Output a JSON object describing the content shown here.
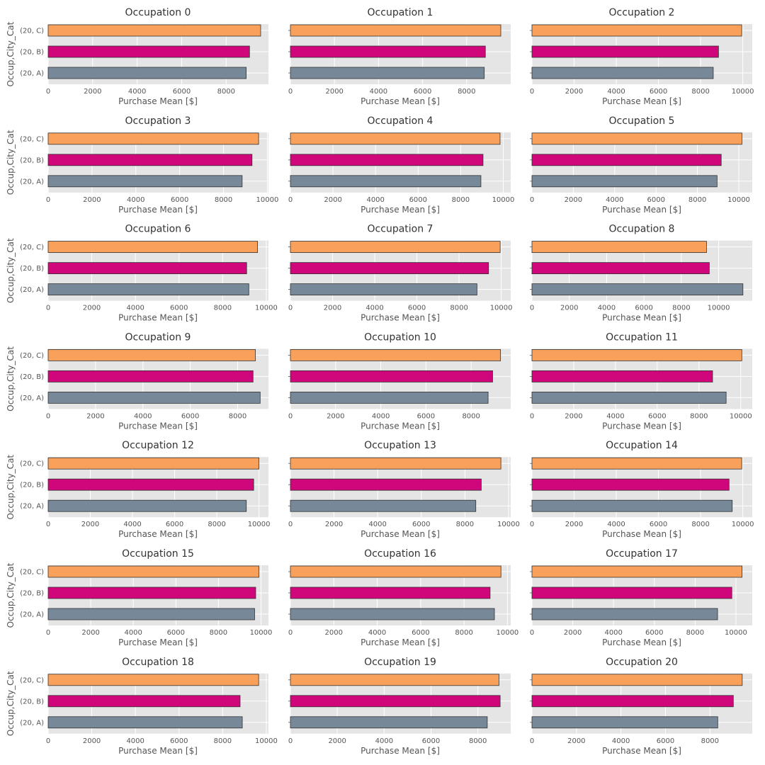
{
  "chart_data": {
    "type": "bar",
    "orientation": "horizontal",
    "layout": "7 rows x 3 columns grid of subplots",
    "categories": [
      "(20, A)",
      "(20, B)",
      "(20, C)"
    ],
    "series_colors": [
      "#778899",
      "#d0077a",
      "#f9a15a"
    ],
    "xlabel": "Purchase Mean [$]",
    "ylabel": "Occup,City_Cat",
    "grid": true,
    "panels": [
      {
        "title": "Occupation 0",
        "values": [
          8900,
          9050,
          9550
        ],
        "xlim": [
          0,
          9900
        ],
        "xticks": [
          0,
          2000,
          4000,
          6000,
          8000
        ]
      },
      {
        "title": "Occupation 1",
        "values": [
          8800,
          8850,
          9550
        ],
        "xlim": [
          0,
          10000
        ],
        "xticks": [
          0,
          2000,
          4000,
          6000,
          8000
        ]
      },
      {
        "title": "Occupation 2",
        "values": [
          8600,
          8850,
          9950
        ],
        "xlim": [
          0,
          10450
        ],
        "xticks": [
          0,
          2000,
          4000,
          6000,
          8000,
          10000
        ]
      },
      {
        "title": "Occupation 3",
        "values": [
          8850,
          9300,
          9600
        ],
        "xlim": [
          0,
          10050
        ],
        "xticks": [
          0,
          2000,
          4000,
          6000,
          8000,
          10000
        ]
      },
      {
        "title": "Occupation 4",
        "values": [
          8950,
          9050,
          9850
        ],
        "xlim": [
          0,
          10350
        ],
        "xticks": [
          0,
          2000,
          4000,
          6000,
          8000,
          10000
        ]
      },
      {
        "title": "Occupation 5",
        "values": [
          8950,
          9150,
          10150
        ],
        "xlim": [
          0,
          10650
        ],
        "xticks": [
          0,
          2000,
          4000,
          6000,
          8000,
          10000
        ]
      },
      {
        "title": "Occupation 6",
        "values": [
          9200,
          9100,
          9600
        ],
        "xlim": [
          0,
          10100
        ],
        "xticks": [
          0,
          2000,
          4000,
          6000,
          8000,
          10000
        ]
      },
      {
        "title": "Occupation 7",
        "values": [
          8850,
          9400,
          9950
        ],
        "xlim": [
          0,
          10450
        ],
        "xticks": [
          0,
          2000,
          4000,
          6000,
          8000,
          10000
        ]
      },
      {
        "title": "Occupation 8",
        "values": [
          11300,
          9500,
          9350
        ],
        "xlim": [
          0,
          11800
        ],
        "xticks": [
          0,
          2000,
          4000,
          6000,
          8000,
          10000
        ]
      },
      {
        "title": "Occupation 9",
        "values": [
          8950,
          8650,
          8750
        ],
        "xlim": [
          0,
          9300
        ],
        "xticks": [
          0,
          2000,
          4000,
          6000,
          8000
        ]
      },
      {
        "title": "Occupation 10",
        "values": [
          8750,
          8950,
          9300
        ],
        "xlim": [
          0,
          9750
        ],
        "xticks": [
          0,
          2000,
          4000,
          6000,
          8000
        ]
      },
      {
        "title": "Occupation 11",
        "values": [
          9300,
          8650,
          10050
        ],
        "xlim": [
          0,
          10550
        ],
        "xticks": [
          0,
          2000,
          4000,
          6000,
          8000,
          10000
        ]
      },
      {
        "title": "Occupation 12",
        "values": [
          9400,
          9750,
          10000
        ],
        "xlim": [
          0,
          10450
        ],
        "xticks": [
          0,
          2000,
          4000,
          6000,
          8000,
          10000
        ]
      },
      {
        "title": "Occupation 13",
        "values": [
          8500,
          8750,
          9650
        ],
        "xlim": [
          0,
          10100
        ],
        "xticks": [
          0,
          2000,
          4000,
          6000,
          8000,
          10000
        ]
      },
      {
        "title": "Occupation 14",
        "values": [
          9500,
          9350,
          9950
        ],
        "xlim": [
          0,
          10450
        ],
        "xticks": [
          0,
          2000,
          4000,
          6000,
          8000,
          10000
        ]
      },
      {
        "title": "Occupation 15",
        "values": [
          9700,
          9750,
          9900
        ],
        "xlim": [
          0,
          10350
        ],
        "xticks": [
          0,
          2000,
          4000,
          6000,
          8000,
          10000
        ]
      },
      {
        "title": "Occupation 16",
        "values": [
          9400,
          9200,
          9700
        ],
        "xlim": [
          0,
          10150
        ],
        "xticks": [
          0,
          2000,
          4000,
          6000,
          8000,
          10000
        ]
      },
      {
        "title": "Occupation 17",
        "values": [
          9100,
          9800,
          10300
        ],
        "xlim": [
          0,
          10800
        ],
        "xticks": [
          0,
          2000,
          4000,
          6000,
          8000,
          10000
        ]
      },
      {
        "title": "Occupation 18",
        "values": [
          8900,
          8800,
          9650
        ],
        "xlim": [
          0,
          10100
        ],
        "xticks": [
          0,
          2000,
          4000,
          6000,
          8000,
          10000
        ]
      },
      {
        "title": "Occupation 19",
        "values": [
          8400,
          8950,
          8900
        ],
        "xlim": [
          0,
          9400
        ],
        "xticks": [
          0,
          2000,
          4000,
          6000,
          8000
        ]
      },
      {
        "title": "Occupation 20",
        "values": [
          8350,
          9050,
          9450
        ],
        "xlim": [
          0,
          9900
        ],
        "xticks": [
          0,
          2000,
          4000,
          6000,
          8000
        ]
      }
    ]
  }
}
